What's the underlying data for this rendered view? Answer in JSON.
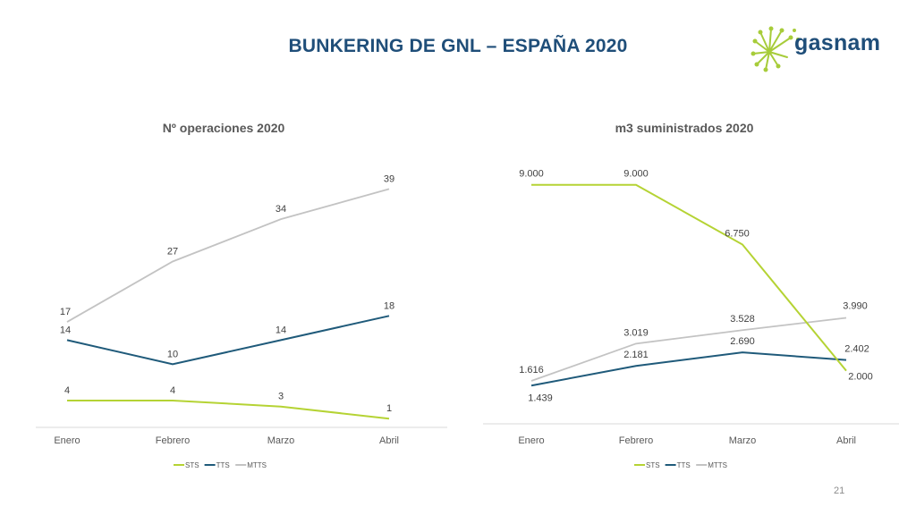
{
  "slide": {
    "title": "BUNKERING DE GNL – ESPAÑA 2020",
    "logo_text": "gasnam",
    "page_number": "21"
  },
  "colors": {
    "STS": "#b5d334",
    "TTS": "#1f5a7a",
    "MTTS": "#c3c3c3",
    "title": "#1f4e79"
  },
  "chart_data": [
    {
      "type": "line",
      "title": "Nº operaciones 2020",
      "categories": [
        "Enero",
        "Febrero",
        "Marzo",
        "Abril"
      ],
      "series": [
        {
          "name": "STS",
          "values": [
            4,
            4,
            3,
            1
          ],
          "labels": [
            "4",
            "4",
            "3",
            "1"
          ]
        },
        {
          "name": "TTS",
          "values": [
            14,
            10,
            14,
            18
          ],
          "labels": [
            "14",
            "10",
            "14",
            "18"
          ]
        },
        {
          "name": "MTTS",
          "values": [
            17,
            27,
            34,
            39
          ],
          "labels": [
            "17",
            "27",
            "34",
            "39"
          ]
        }
      ],
      "xlabel": "",
      "ylabel": "",
      "ylim": [
        0,
        40
      ],
      "grid": false,
      "legend": "bottom"
    },
    {
      "type": "line",
      "title": "m3 suministrados 2020",
      "categories": [
        "Enero",
        "Febrero",
        "Marzo",
        "Abril"
      ],
      "series": [
        {
          "name": "STS",
          "values": [
            9000,
            9000,
            6750,
            2000
          ],
          "labels": [
            "9.000",
            "9.000",
            "6.750",
            "2.000"
          ]
        },
        {
          "name": "TTS",
          "values": [
            1439,
            2181,
            2690,
            2402
          ],
          "labels": [
            "1.439",
            "2.181",
            "2.690",
            "2.402"
          ]
        },
        {
          "name": "MTTS",
          "values": [
            1616,
            3019,
            3528,
            3990
          ],
          "labels": [
            "1.616",
            "3.019",
            "3.528",
            "3.990"
          ]
        }
      ],
      "xlabel": "",
      "ylabel": "",
      "ylim": [
        0,
        10000
      ],
      "grid": false,
      "legend": "bottom"
    }
  ]
}
